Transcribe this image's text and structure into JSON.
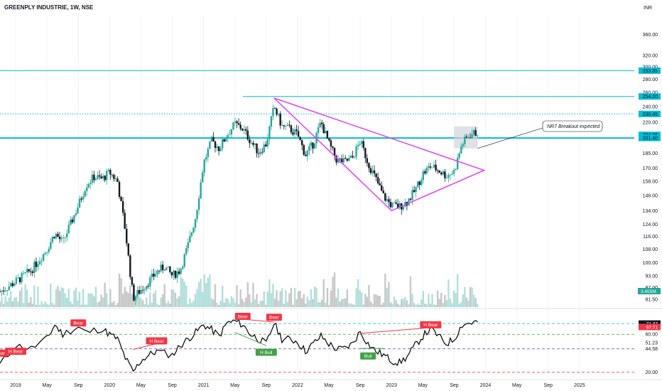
{
  "header": {
    "symbol": "GREENPLY INDUSTRIE, 1W, NSE",
    "currency": "INR"
  },
  "colors": {
    "up": "#26a69a",
    "down": "#131722",
    "cyan": "#00bcd4",
    "magenta": "#e040fb",
    "rsi": "#000000",
    "bear": "#f23645",
    "bull": "#43a047",
    "volume": "#b2ebf2",
    "zone": "#d1d4dc",
    "dash_red": "#f23645",
    "dash_green": "#43a047",
    "dash_purple": "#7e57c2"
  },
  "chart_data": {
    "type": "candlestick",
    "price_ticks": [
      "360.00",
      "320.00",
      "300.00",
      "280.00",
      "260.00",
      "240.00",
      "220.00",
      "204.95",
      "185.00",
      "170.00",
      "158.00",
      "146.00",
      "134.00",
      "124.00",
      "116.00",
      "108.00",
      "100.00",
      "93.00",
      "87.00",
      "81.50"
    ],
    "price_scale": "log",
    "price_range": [
      78,
      400
    ],
    "x_range": [
      "2018-11",
      "2025-08"
    ],
    "time_ticks": [
      {
        "label": "2019",
        "date": "2019-01"
      },
      {
        "label": "May",
        "date": "2019-05"
      },
      {
        "label": "Sep",
        "date": "2019-09"
      },
      {
        "label": "2020",
        "date": "2020-01"
      },
      {
        "label": "May",
        "date": "2020-05"
      },
      {
        "label": "Sep",
        "date": "2020-09"
      },
      {
        "label": "2021",
        "date": "2021-01"
      },
      {
        "label": "May",
        "date": "2021-05"
      },
      {
        "label": "Sep",
        "date": "2021-09"
      },
      {
        "label": "2022",
        "date": "2022-01"
      },
      {
        "label": "May",
        "date": "2022-05"
      },
      {
        "label": "Sep",
        "date": "2022-09"
      },
      {
        "label": "2023",
        "date": "2023-01"
      },
      {
        "label": "May",
        "date": "2023-05"
      },
      {
        "label": "Sep",
        "date": "2023-09"
      },
      {
        "label": "2024",
        "date": "2024-01"
      },
      {
        "label": "May",
        "date": "2024-05"
      },
      {
        "label": "Sep",
        "date": "2024-09"
      },
      {
        "label": "2025",
        "date": "2025-01"
      }
    ],
    "price_path": [
      [
        "2018-11",
        85
      ],
      [
        "2019-01",
        90
      ],
      [
        "2019-03",
        96
      ],
      [
        "2019-05",
        108
      ],
      [
        "2019-06",
        118
      ],
      [
        "2019-07",
        112
      ],
      [
        "2019-09",
        138
      ],
      [
        "2019-10",
        155
      ],
      [
        "2019-11",
        162
      ],
      [
        "2019-12",
        160
      ],
      [
        "2020-01",
        166
      ],
      [
        "2020-02",
        158
      ],
      [
        "2020-03",
        120
      ],
      [
        "2020-04",
        82
      ],
      [
        "2020-05",
        86
      ],
      [
        "2020-06",
        90
      ],
      [
        "2020-07",
        95
      ],
      [
        "2020-08",
        98
      ],
      [
        "2020-09",
        93
      ],
      [
        "2020-10",
        96
      ],
      [
        "2020-11",
        110
      ],
      [
        "2020-12",
        130
      ],
      [
        "2021-01",
        175
      ],
      [
        "2021-02",
        198
      ],
      [
        "2021-03",
        190
      ],
      [
        "2021-04",
        205
      ],
      [
        "2021-05",
        218
      ],
      [
        "2021-06",
        212
      ],
      [
        "2021-07",
        198
      ],
      [
        "2021-08",
        186
      ],
      [
        "2021-09",
        195
      ],
      [
        "2021-10",
        240
      ],
      [
        "2021-11",
        215
      ],
      [
        "2021-12",
        212
      ],
      [
        "2022-01",
        205
      ],
      [
        "2022-02",
        183
      ],
      [
        "2022-03",
        195
      ],
      [
        "2022-04",
        220
      ],
      [
        "2022-05",
        195
      ],
      [
        "2022-06",
        178
      ],
      [
        "2022-07",
        176
      ],
      [
        "2022-08",
        180
      ],
      [
        "2022-09",
        198
      ],
      [
        "2022-10",
        175
      ],
      [
        "2022-11",
        160
      ],
      [
        "2022-12",
        145
      ],
      [
        "2023-01",
        138
      ],
      [
        "2023-02",
        137
      ],
      [
        "2023-03",
        141
      ],
      [
        "2023-04",
        150
      ],
      [
        "2023-05",
        165
      ],
      [
        "2023-06",
        172
      ],
      [
        "2023-07",
        168
      ],
      [
        "2023-08",
        163
      ],
      [
        "2023-09",
        167
      ],
      [
        "2023-10",
        195
      ],
      [
        "2023-11",
        205
      ],
      [
        "2023-12",
        208
      ]
    ],
    "horizontal_levels": [
      {
        "value": 293.85,
        "style": "solid"
      },
      {
        "value": 254.2,
        "style": "solid",
        "from": "2021-06"
      },
      {
        "value": 230.45,
        "style": "dotted"
      },
      {
        "value": 201.4,
        "style": "solid-thick"
      }
    ],
    "price_labels": [
      {
        "text": "293.85",
        "value": 293.85,
        "color": "#00bcd4"
      },
      {
        "text": "254.20",
        "value": 254.2,
        "color": "#00bcd4"
      },
      {
        "text": "230.45",
        "value": 230.45,
        "color": "#00bcd4"
      },
      {
        "text": "204.95",
        "value": 204.95,
        "color": "#00bcd4"
      },
      {
        "text": "201.40",
        "value": 201.4,
        "color": "#00bcd4"
      }
    ],
    "triangle": [
      [
        "2021-10",
        252
      ],
      [
        "2023-11",
        168
      ],
      [
        "2023-01",
        134
      ]
    ],
    "zone": {
      "from": "2023-09",
      "to": "2023-12",
      "top": 215,
      "bottom": 190
    },
    "annotation": "NR7 Breakout expected",
    "volume_label": "3.455M",
    "rsi": {
      "ticks": [
        "71.37",
        "67.71",
        "60.00",
        "51.23",
        "44.58",
        "20.00"
      ],
      "range": [
        15,
        85
      ],
      "current_labels": [
        {
          "text": "71.37",
          "color": "#131722",
          "value": 71.37
        },
        {
          "text": "67.71",
          "color": "#f23645",
          "value": 67.71
        }
      ],
      "levels": [
        {
          "value": 71.37,
          "color": "#00bcd4"
        },
        {
          "value": 60,
          "color": "#43a047"
        },
        {
          "value": 44.58,
          "color": "#7e57c2"
        },
        {
          "value": 20,
          "color": "#f23645"
        }
      ],
      "path": [
        [
          "2018-11",
          28
        ],
        [
          "2019-01",
          48
        ],
        [
          "2019-03",
          45
        ],
        [
          "2019-05",
          55
        ],
        [
          "2019-06",
          70
        ],
        [
          "2019-07",
          60
        ],
        [
          "2019-09",
          68
        ],
        [
          "2019-10",
          62
        ],
        [
          "2019-12",
          66
        ],
        [
          "2020-01",
          60
        ],
        [
          "2020-02",
          55
        ],
        [
          "2020-03",
          35
        ],
        [
          "2020-04",
          20
        ],
        [
          "2020-05",
          32
        ],
        [
          "2020-06",
          38
        ],
        [
          "2020-07",
          42
        ],
        [
          "2020-09",
          38
        ],
        [
          "2020-10",
          48
        ],
        [
          "2020-11",
          55
        ],
        [
          "2020-12",
          62
        ],
        [
          "2021-01",
          70
        ],
        [
          "2021-02",
          65
        ],
        [
          "2021-03",
          58
        ],
        [
          "2021-04",
          72
        ],
        [
          "2021-05",
          74
        ],
        [
          "2021-06",
          70
        ],
        [
          "2021-07",
          60
        ],
        [
          "2021-08",
          55
        ],
        [
          "2021-09",
          50
        ],
        [
          "2021-10",
          72
        ],
        [
          "2021-11",
          55
        ],
        [
          "2021-12",
          55
        ],
        [
          "2022-01",
          52
        ],
        [
          "2022-02",
          42
        ],
        [
          "2022-03",
          50
        ],
        [
          "2022-04",
          58
        ],
        [
          "2022-05",
          50
        ],
        [
          "2022-06",
          44
        ],
        [
          "2022-07",
          45
        ],
        [
          "2022-08",
          50
        ],
        [
          "2022-09",
          63
        ],
        [
          "2022-10",
          50
        ],
        [
          "2022-11",
          42
        ],
        [
          "2022-12",
          38
        ],
        [
          "2023-01",
          32
        ],
        [
          "2023-02",
          30
        ],
        [
          "2023-03",
          36
        ],
        [
          "2023-04",
          48
        ],
        [
          "2023-05",
          58
        ],
        [
          "2023-06",
          66
        ],
        [
          "2023-07",
          58
        ],
        [
          "2023-08",
          50
        ],
        [
          "2023-09",
          55
        ],
        [
          "2023-10",
          70
        ],
        [
          "2023-11",
          72
        ],
        [
          "2023-12",
          73
        ]
      ],
      "tags": [
        {
          "text": "Bear",
          "type": "bear",
          "date": "2018-11",
          "value": 40
        },
        {
          "text": "H Bear",
          "type": "bear",
          "date": "2019-01",
          "value": 42
        },
        {
          "text": "Bear",
          "type": "bear",
          "date": "2019-09",
          "value": 72
        },
        {
          "text": "H Bear",
          "type": "bear",
          "date": "2020-07",
          "value": 53
        },
        {
          "text": "Bear",
          "type": "bear",
          "date": "2021-06",
          "value": 79
        },
        {
          "text": "Bear",
          "type": "bear",
          "date": "2021-10",
          "value": 78
        },
        {
          "text": "H Bull",
          "type": "bull",
          "date": "2021-09",
          "value": 41
        },
        {
          "text": "Bull",
          "type": "bull",
          "date": "2022-10",
          "value": 37
        },
        {
          "text": "H Bear",
          "type": "bear",
          "date": "2023-06",
          "value": 70
        }
      ]
    }
  }
}
